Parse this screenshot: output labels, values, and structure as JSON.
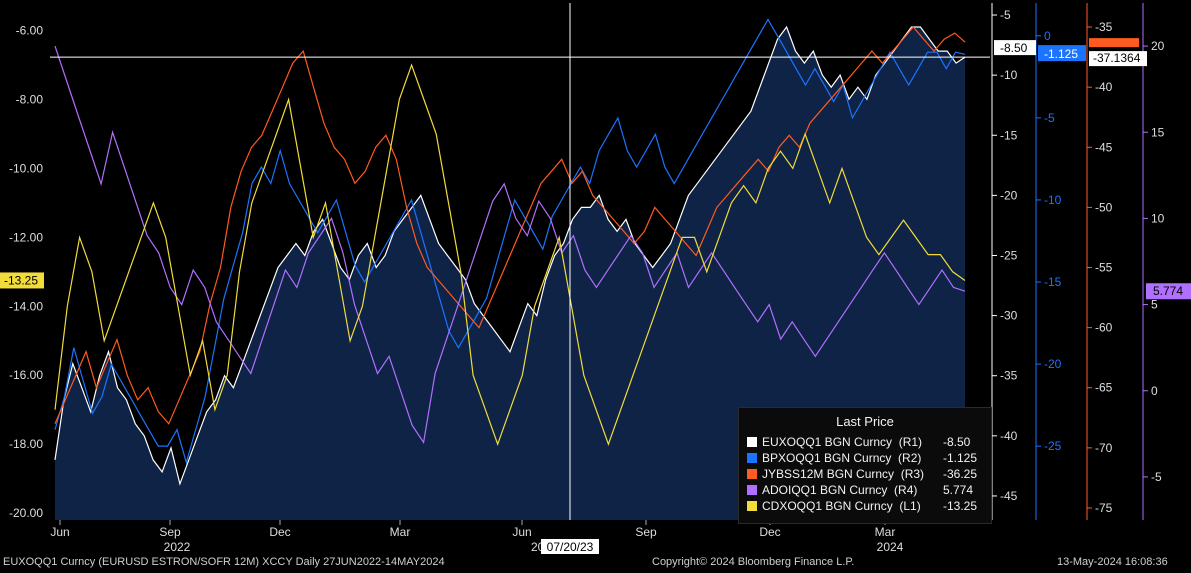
{
  "footer": {
    "left": "EUXOQQ1 Curncy (EURUSD ESTRON/SOFR 12M) XCCY  Daily 27JUN2022-14MAY2024",
    "center": "Copyright© 2024 Bloomberg Finance L.P.",
    "right": "13-May-2024 16:08:36"
  },
  "crosshair": {
    "date_label": "07/20/23",
    "year_fragment": "20"
  },
  "legend": {
    "title": "Last Price",
    "items": [
      {
        "name": "EUXOQQ1 BGN Curncy  (R1)",
        "value": "-8.50",
        "color": "#ffffff"
      },
      {
        "name": "BPXOQQ1 BGN Curncy  (R2)",
        "value": "-1.125",
        "color": "#1a74ff"
      },
      {
        "name": "JYBSS12M BGN Curncy  (R3)",
        "value": "-36.25",
        "color": "#ff5a1f"
      },
      {
        "name": "ADOIQQ1 BGN Curncy  (R4)",
        "value": "5.774",
        "color": "#b070ff"
      },
      {
        "name": "CDXOQQ1 BGN Curncy  (L1)",
        "value": "-13.25",
        "color": "#f2dc3a"
      }
    ]
  },
  "chart_data": {
    "type": "line",
    "x_axis": {
      "ticks": [
        "Jun",
        "Sep",
        "Dec",
        "Mar",
        "Jun",
        "Sep",
        "Dec",
        "Mar"
      ],
      "years": [
        "2022",
        "2023",
        "2024"
      ],
      "range": [
        "2022-06-27",
        "2024-05-14"
      ]
    },
    "axes": {
      "L1": {
        "range": [
          -20.2,
          -5.2
        ],
        "ticks": [
          "-6.00",
          "-8.00",
          "-10.00",
          "-12.00",
          "-14.00",
          "-16.00",
          "-18.00",
          "-20.00"
        ],
        "last_label": "-13.25",
        "color": "#f2dc3a"
      },
      "R1": {
        "range": [
          -47,
          -4
        ],
        "ticks": [
          "-5",
          "-10",
          "-15",
          "-20",
          "-25",
          "-30",
          "-35",
          "-40",
          "-45"
        ],
        "last_label": "-8.50",
        "color": "#ffffff"
      },
      "R2": {
        "range": [
          -29.5,
          2
        ],
        "ticks": [
          "0",
          "-5",
          "-10",
          "-15",
          "-20",
          "-25"
        ],
        "last_label": "-1.125",
        "color": "#1a74ff"
      },
      "R3": {
        "range": [
          -76,
          -33
        ],
        "ticks": [
          "-35",
          "-40",
          "-45",
          "-50",
          "-55",
          "-60",
          "-65",
          "-70",
          "-75"
        ],
        "last_label": "-36.25",
        "extra_label": "-37.1364",
        "color": "#ff5a1f"
      },
      "R4": {
        "range": [
          -7.5,
          22.5
        ],
        "ticks": [
          "20",
          "15",
          "10",
          "5",
          "0",
          "-5"
        ],
        "last_label": "5.774",
        "color": "#b070ff"
      }
    },
    "series": [
      {
        "name": "EUXOQQ1 BGN Curncy (R1)",
        "axis": "R1",
        "color": "#ffffff",
        "area": true,
        "values": [
          -42,
          -37,
          -34,
          -36,
          -38,
          -35,
          -33,
          -36,
          -37,
          -39,
          -40,
          -42,
          -43,
          -41,
          -44,
          -42,
          -40,
          -38,
          -37,
          -35,
          -36,
          -34,
          -32,
          -30,
          -28,
          -26,
          -25,
          -24,
          -25,
          -23,
          -22,
          -24,
          -26,
          -27,
          -25,
          -24,
          -26,
          -25,
          -23,
          -22,
          -21,
          -20,
          -22,
          -24,
          -25,
          -26,
          -27,
          -29,
          -30,
          -31,
          -32,
          -33,
          -31,
          -29,
          -30,
          -27,
          -25,
          -24,
          -22,
          -21,
          -21,
          -20,
          -22,
          -23,
          -22,
          -24,
          -25,
          -26,
          -25,
          -24,
          -22,
          -20,
          -19,
          -18,
          -17,
          -16,
          -15,
          -14,
          -13,
          -11,
          -9,
          -7,
          -6,
          -8,
          -9,
          -8,
          -10,
          -11,
          -10,
          -12,
          -11,
          -12,
          -10,
          -9,
          -8,
          -7,
          -6,
          -6,
          -7,
          -8,
          -8,
          -9,
          -8.5
        ]
      },
      {
        "name": "BPXOQQ1 BGN Curncy (R2)",
        "axis": "R2",
        "color": "#1a74ff",
        "area": false,
        "values": [
          -24,
          -22,
          -19,
          -21,
          -23,
          -22,
          -20,
          -21,
          -22,
          -23,
          -24,
          -25,
          -25,
          -24,
          -26,
          -24,
          -22,
          -19,
          -16,
          -14,
          -12,
          -9,
          -8,
          -9,
          -7,
          -9,
          -10,
          -11,
          -12,
          -11,
          -10,
          -12,
          -14,
          -15,
          -14,
          -13,
          -12,
          -11,
          -10,
          -12,
          -14,
          -16,
          -18,
          -19,
          -18,
          -17,
          -16,
          -14,
          -12,
          -10,
          -11,
          -12,
          -13,
          -11,
          -10,
          -9,
          -8,
          -9,
          -7,
          -6,
          -5,
          -7,
          -8,
          -7,
          -6,
          -8,
          -9,
          -8,
          -7,
          -6,
          -5,
          -4,
          -3,
          -2,
          -1,
          0,
          1,
          0,
          -1,
          -2,
          -3,
          -2,
          -3,
          -4,
          -3,
          -5,
          -4,
          -3,
          -2,
          -1,
          -2,
          -3,
          -2,
          -1,
          -1,
          -2,
          -1,
          -1.125
        ]
      },
      {
        "name": "JYBSS12M BGN Curncy (R3)",
        "axis": "R3",
        "color": "#ff5a1f",
        "area": false,
        "values": [
          -68,
          -66,
          -64,
          -62,
          -65,
          -63,
          -61,
          -64,
          -66,
          -65,
          -67,
          -68,
          -66,
          -64,
          -62,
          -58,
          -55,
          -50,
          -47,
          -45,
          -44,
          -42,
          -40,
          -38,
          -37,
          -40,
          -43,
          -45,
          -46,
          -48,
          -47,
          -45,
          -44,
          -46,
          -50,
          -53,
          -55,
          -56,
          -57,
          -58,
          -59,
          -60,
          -58,
          -56,
          -54,
          -52,
          -50,
          -48,
          -47,
          -46,
          -48,
          -47,
          -49,
          -50,
          -51,
          -52,
          -53,
          -52,
          -50,
          -51,
          -52,
          -53,
          -54,
          -52,
          -50,
          -49,
          -48,
          -47,
          -46,
          -47,
          -45,
          -44,
          -45,
          -43,
          -42,
          -41,
          -40,
          -39,
          -38,
          -37,
          -38,
          -37,
          -36,
          -35,
          -36,
          -37,
          -36,
          -35.5,
          -36.25
        ]
      },
      {
        "name": "ADOIQQ1 BGN Curncy (R4)",
        "axis": "R4",
        "color": "#b070ff",
        "area": false,
        "values": [
          20,
          18,
          16,
          14,
          12,
          15,
          13,
          11,
          9,
          8,
          6,
          5,
          7,
          6,
          4,
          3,
          2,
          1,
          3,
          5,
          7,
          6,
          8,
          9,
          10,
          8,
          5,
          3,
          1,
          2,
          0,
          -2,
          -3,
          1,
          3,
          5,
          7,
          9,
          11,
          12,
          10,
          9,
          11,
          10,
          8,
          9,
          7,
          6,
          7,
          8,
          9,
          8,
          6,
          7,
          8,
          6,
          7,
          8,
          7,
          6,
          5,
          4,
          5,
          3,
          4,
          3,
          2,
          3,
          4,
          5,
          6,
          7,
          8,
          7,
          6,
          5,
          6,
          7,
          6,
          5.774
        ]
      },
      {
        "name": "CDXOQQ1 BGN Curncy (L1)",
        "axis": "L1",
        "color": "#f2dc3a",
        "area": false,
        "values": [
          -17,
          -14,
          -12,
          -13,
          -15,
          -14,
          -13,
          -12,
          -11,
          -12,
          -14,
          -16,
          -15,
          -17,
          -16,
          -13,
          -11,
          -10,
          -9,
          -8,
          -10,
          -12,
          -11,
          -13,
          -15,
          -14,
          -12,
          -10,
          -8,
          -7,
          -8,
          -9,
          -11,
          -13,
          -16,
          -17,
          -18,
          -17,
          -16,
          -14,
          -13,
          -12,
          -14,
          -16,
          -17,
          -18,
          -17,
          -16,
          -15,
          -14,
          -13,
          -12,
          -12,
          -13,
          -12,
          -11,
          -10.5,
          -11,
          -10,
          -9.5,
          -10,
          -9,
          -10,
          -11,
          -10,
          -11,
          -12,
          -12.5,
          -12,
          -11.5,
          -12,
          -12.5,
          -12.5,
          -13,
          -13.25
        ]
      }
    ]
  }
}
